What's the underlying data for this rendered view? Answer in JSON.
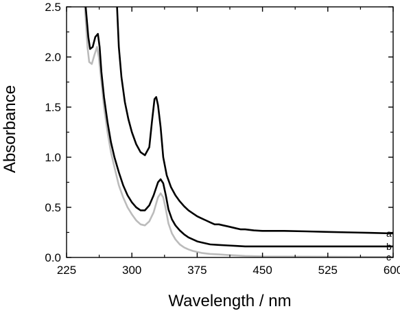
{
  "chart_data": {
    "type": "line",
    "title": "",
    "xlabel": "Wavelength / nm",
    "ylabel": "Absorbance",
    "xlim": [
      225,
      600
    ],
    "ylim": [
      0.0,
      2.5
    ],
    "xticks": [
      225,
      300,
      375,
      450,
      525,
      600
    ],
    "xtick_labels": [
      "225",
      "300",
      "375",
      "450",
      "525",
      "600"
    ],
    "yticks": [
      0.0,
      0.5,
      1.0,
      1.5,
      2.0,
      2.5
    ],
    "ytick_labels": [
      "0.0",
      "0.5",
      "1.0",
      "1.5",
      "2.0",
      "2.5"
    ],
    "grid": false,
    "legend": "none",
    "series": [
      {
        "name": "a",
        "color": "#000000",
        "x": [
          283,
          285,
          288,
          292,
          296,
          300,
          305,
          310,
          315,
          320,
          323,
          326,
          328,
          330,
          333,
          336,
          340,
          345,
          350,
          355,
          360,
          365,
          370,
          375,
          380,
          385,
          390,
          395,
          400,
          405,
          410,
          415,
          420,
          425,
          430,
          440,
          450,
          475,
          500,
          525,
          550,
          575,
          600
        ],
        "y": [
          2.5,
          2.1,
          1.8,
          1.55,
          1.38,
          1.25,
          1.13,
          1.05,
          1.02,
          1.1,
          1.35,
          1.58,
          1.6,
          1.52,
          1.3,
          1.0,
          0.82,
          0.7,
          0.62,
          0.56,
          0.51,
          0.47,
          0.44,
          0.41,
          0.39,
          0.37,
          0.35,
          0.33,
          0.33,
          0.32,
          0.31,
          0.3,
          0.29,
          0.28,
          0.28,
          0.27,
          0.265,
          0.265,
          0.26,
          0.255,
          0.25,
          0.245,
          0.24
        ]
      },
      {
        "name": "b",
        "color": "#000000",
        "x": [
          247,
          250,
          252,
          255,
          258,
          261,
          263,
          265,
          268,
          272,
          276,
          280,
          285,
          290,
          295,
          300,
          305,
          310,
          315,
          320,
          325,
          330,
          333,
          336,
          339,
          342,
          346,
          350,
          355,
          360,
          365,
          370,
          375,
          380,
          390,
          400,
          410,
          420,
          430,
          450,
          500,
          550,
          600
        ],
        "y": [
          2.5,
          2.2,
          2.08,
          2.1,
          2.2,
          2.23,
          2.1,
          1.85,
          1.6,
          1.35,
          1.15,
          1.0,
          0.85,
          0.72,
          0.62,
          0.55,
          0.5,
          0.47,
          0.47,
          0.52,
          0.62,
          0.75,
          0.78,
          0.74,
          0.62,
          0.48,
          0.38,
          0.32,
          0.27,
          0.23,
          0.2,
          0.18,
          0.16,
          0.15,
          0.13,
          0.125,
          0.12,
          0.115,
          0.11,
          0.11,
          0.11,
          0.11,
          0.11
        ]
      },
      {
        "name": "c",
        "color": "#bbbbbb",
        "x": [
          246,
          249,
          251,
          254,
          257,
          260,
          262,
          265,
          268,
          272,
          276,
          280,
          285,
          290,
          295,
          300,
          305,
          310,
          315,
          320,
          325,
          330,
          333,
          336,
          339,
          342,
          346,
          350,
          355,
          360,
          365,
          370,
          375,
          380,
          390,
          400,
          410,
          420,
          430,
          450,
          500,
          550,
          600
        ],
        "y": [
          2.5,
          2.1,
          1.95,
          1.93,
          2.02,
          2.1,
          2.0,
          1.75,
          1.5,
          1.25,
          1.05,
          0.9,
          0.72,
          0.6,
          0.5,
          0.43,
          0.37,
          0.33,
          0.32,
          0.36,
          0.45,
          0.6,
          0.64,
          0.6,
          0.48,
          0.34,
          0.24,
          0.18,
          0.13,
          0.1,
          0.08,
          0.065,
          0.055,
          0.045,
          0.035,
          0.03,
          0.025,
          0.02,
          0.015,
          0.01,
          0.008,
          0.006,
          0.005
        ]
      }
    ]
  }
}
